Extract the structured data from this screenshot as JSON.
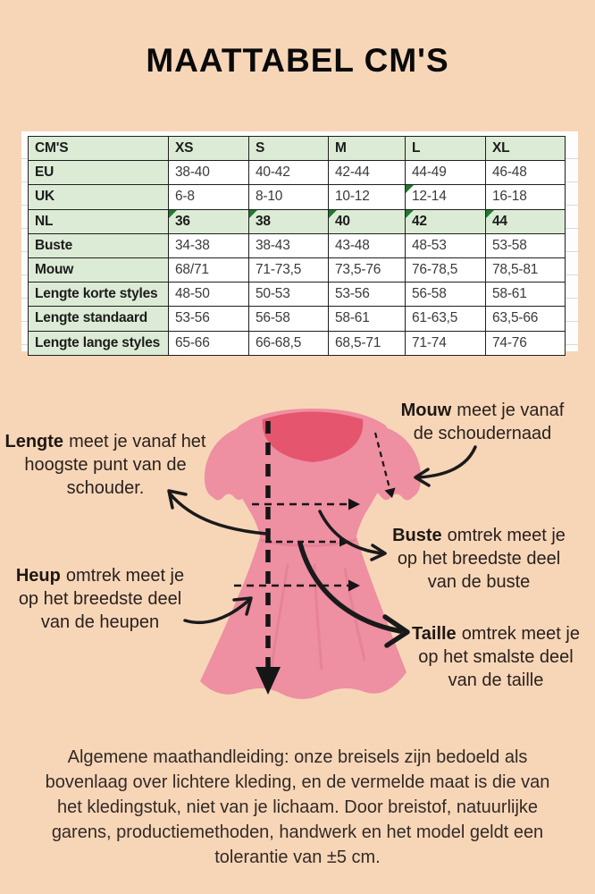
{
  "title": "MAATTABEL CM'S",
  "size_table": {
    "header": [
      "CM'S",
      "XS",
      "S",
      "M",
      "L",
      "XL"
    ],
    "rows": [
      {
        "label": "EU",
        "cells": [
          "38-40",
          "40-42",
          "42-44",
          "44-49",
          "46-48"
        ],
        "green_row": false,
        "bold_cells": false,
        "triangles": []
      },
      {
        "label": "UK",
        "cells": [
          "6-8",
          "8-10",
          "10-12",
          "12-14",
          "16-18"
        ],
        "green_row": false,
        "bold_cells": false,
        "triangles": [
          3
        ]
      },
      {
        "label": "NL",
        "cells": [
          "36",
          "38",
          "40",
          "42",
          "44"
        ],
        "green_row": true,
        "bold_cells": true,
        "triangles": [
          0,
          1,
          2,
          3,
          4
        ]
      },
      {
        "label": "Buste",
        "cells": [
          "34-38",
          "38-43",
          "43-48",
          "48-53",
          "53-58"
        ],
        "green_row": false,
        "bold_cells": false,
        "triangles": []
      },
      {
        "label": "Mouw",
        "cells": [
          "68/71",
          "71-73,5",
          "73,5-76",
          "76-78,5",
          "78,5-81"
        ],
        "green_row": false,
        "bold_cells": false,
        "triangles": []
      },
      {
        "label": "Lengte korte styles",
        "cells": [
          "48-50",
          "50-53",
          "53-56",
          "56-58",
          "58-61"
        ],
        "green_row": false,
        "bold_cells": false,
        "triangles": []
      },
      {
        "label": "Lengte standaard",
        "cells": [
          "53-56",
          "56-58",
          "58-61",
          "61-63,5",
          "63,5-66"
        ],
        "green_row": false,
        "bold_cells": false,
        "triangles": []
      },
      {
        "label": "Lengte lange styles",
        "cells": [
          "65-66",
          "66-68,5",
          "68,5-71",
          "71-74",
          "74-76"
        ],
        "green_row": false,
        "bold_cells": false,
        "triangles": []
      }
    ],
    "colors": {
      "header_bg": "#dcebd5",
      "cell_bg": "#ffffff",
      "border": "#1f1f1f",
      "note_triangle": "#1e7a2e"
    }
  },
  "diagram": {
    "annotations": {
      "lengte": {
        "bold": "Lengte",
        "line1": "meet je vanaf het",
        "rest": [
          "hoogste punt van de",
          "schouder."
        ]
      },
      "heup": {
        "bold": "Heup",
        "line1": "omtrek meet je",
        "rest": [
          "op het breedste deel",
          "van de heupen"
        ]
      },
      "mouw": {
        "bold": "Mouw",
        "line1": "meet je vanaf",
        "rest": [
          "de schoudernaad"
        ]
      },
      "buste": {
        "bold": "Buste",
        "line1": "omtrek meet je",
        "rest": [
          "op het breedste deel",
          "van de buste"
        ]
      },
      "taille": {
        "bold": "Taille",
        "line1": "omtrek meet je",
        "rest": [
          "op het smalste deel",
          "van de taille"
        ]
      }
    },
    "colors": {
      "background": "#f7d6b8",
      "dress": "#ee8fa2",
      "dress_shade": "#e2798f",
      "neckline": "#e5556e",
      "measure_lines": "#151515"
    }
  },
  "footer": {
    "lines": [
      "Algemene maathandleiding: onze breisels zijn bedoeld als",
      "bovenlaag over lichtere kleding, en de vermelde maat is die van",
      "het kledingstuk, niet van je lichaam. Door breistof, natuurlijke",
      "garens, productiemethoden, handwerk en het model geldt een",
      "tolerantie van ±5 cm."
    ]
  }
}
